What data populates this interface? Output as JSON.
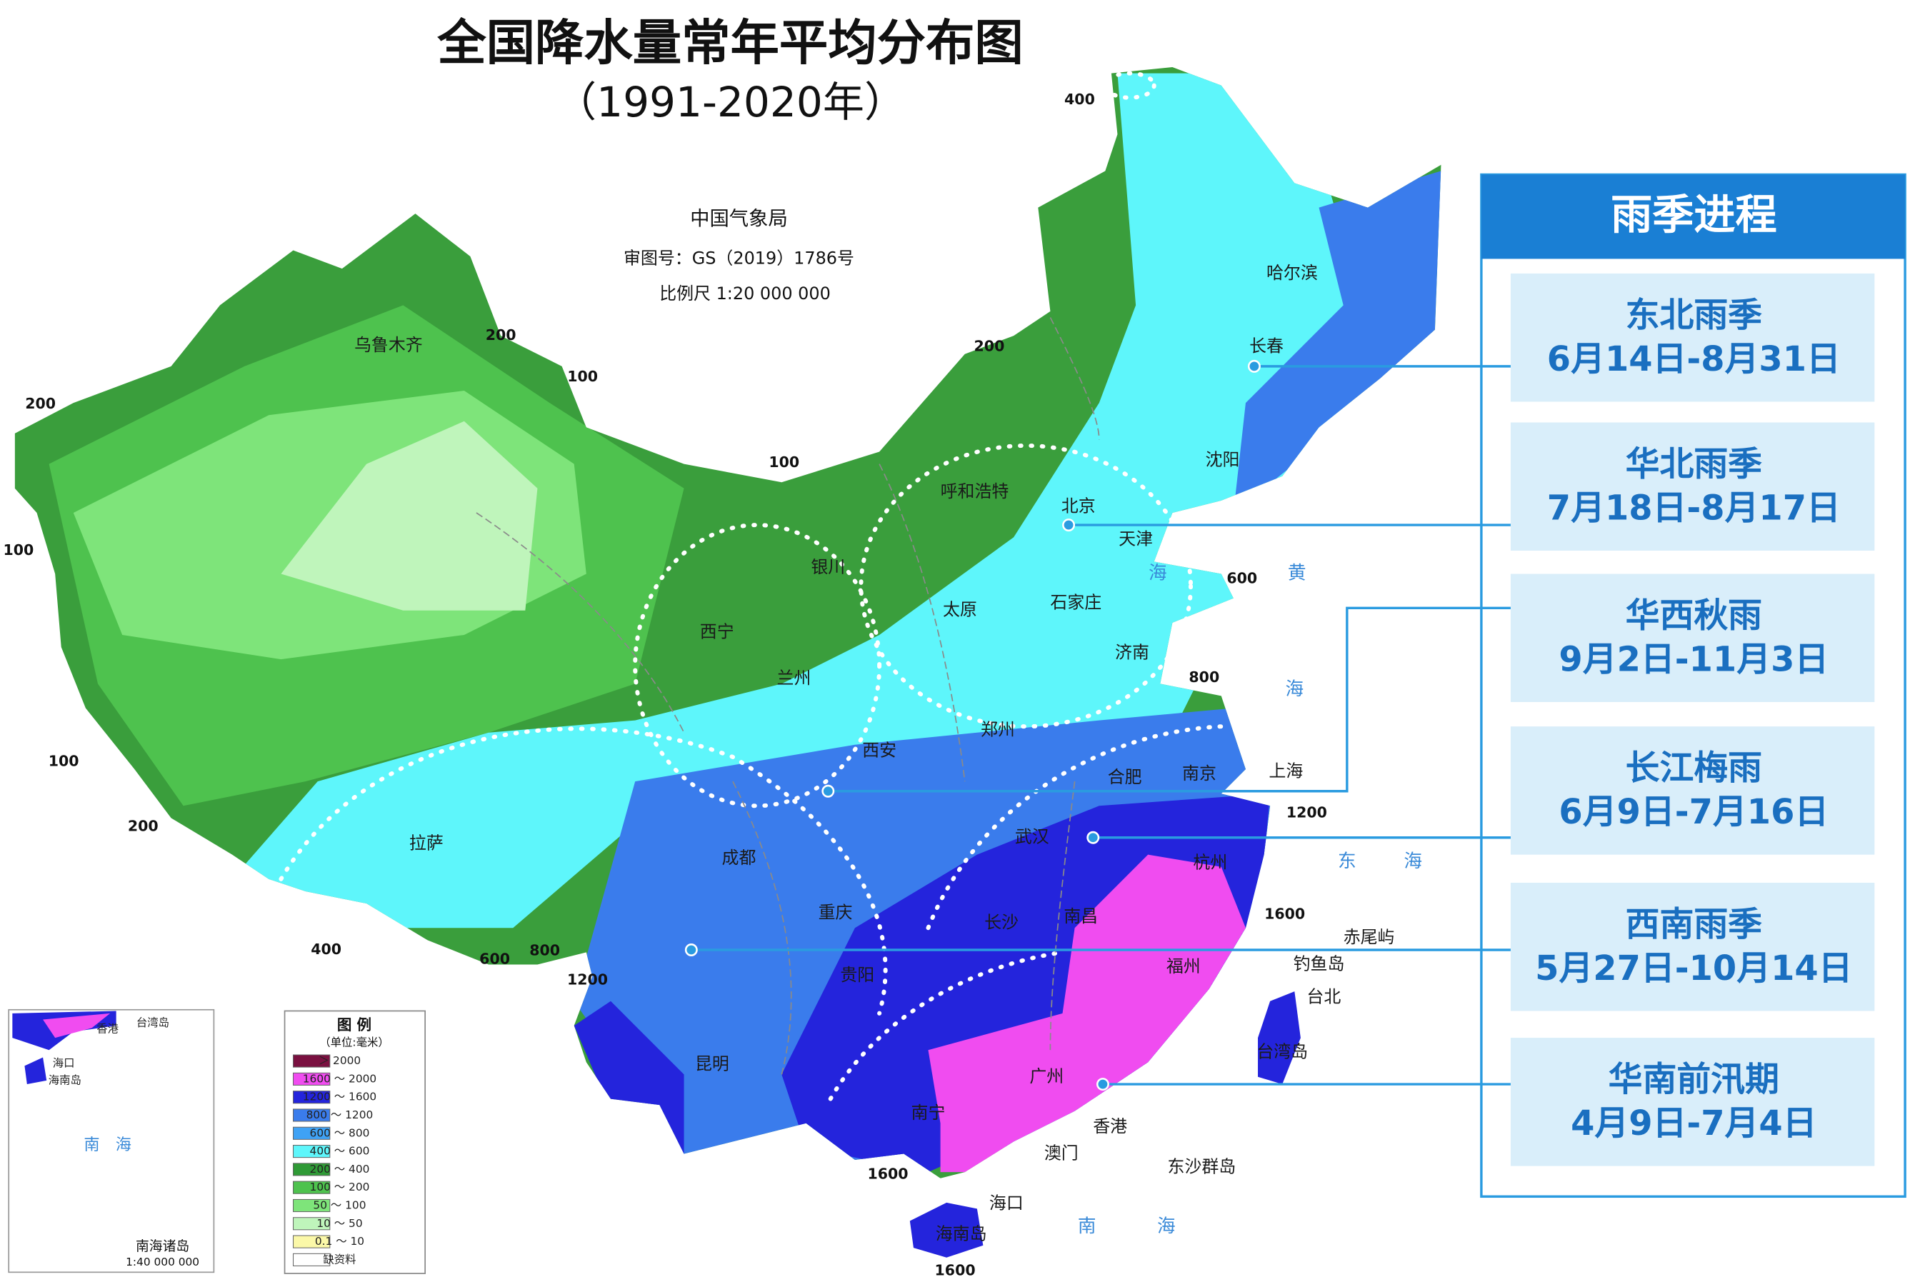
{
  "header": {
    "title": "全国降水量常年平均分布图",
    "subtitle": "（1991-2020年）"
  },
  "map_info": {
    "agency": "中国气象局",
    "approval": "审图号：GS（2019）1786号",
    "scale": "比例尺 1:20 000 000"
  },
  "cities": [
    "乌鲁木齐",
    "哈尔滨",
    "长春",
    "沈阳",
    "呼和浩特",
    "北京",
    "天津",
    "银川",
    "太原",
    "石家庄",
    "西宁",
    "兰州",
    "济南",
    "郑州",
    "西安",
    "合肥",
    "南京",
    "上海",
    "拉萨",
    "成都",
    "武汉",
    "杭州",
    "重庆",
    "长沙",
    "南昌",
    "贵阳",
    "福州",
    "台北",
    "台湾岛",
    "昆明",
    "广州",
    "南宁",
    "香港",
    "澳门",
    "东沙群岛",
    "海口",
    "海南岛",
    "赤尾屿",
    "钓鱼岛"
  ],
  "isolines": [
    400,
    200,
    100,
    200,
    200,
    100,
    100,
    600,
    800,
    100,
    200,
    1200,
    400,
    600,
    800,
    1200,
    1600,
    1600,
    1600
  ],
  "seas": [
    "海",
    "黄",
    "海",
    "东",
    "海",
    "南",
    "海"
  ],
  "inset": {
    "labels": [
      "台湾岛",
      "香港",
      "海口",
      "海南岛",
      "南　海"
    ],
    "title": "南海诸岛",
    "scale": "1:40 000 000"
  },
  "legend": {
    "title": "图 例",
    "unit": "（单位:毫米）",
    "items": [
      {
        "label": "＞ 2000",
        "color": "#7a1040"
      },
      {
        "label": "1600 ～ 2000",
        "color": "#f04cf0"
      },
      {
        "label": "1200 ～ 1600",
        "color": "#2424dc"
      },
      {
        "label": "800 ～ 1200",
        "color": "#3a7cec"
      },
      {
        "label": "600 ～ 800",
        "color": "#3fa2f5"
      },
      {
        "label": "400 ～ 600",
        "color": "#5ef6fb"
      },
      {
        "label": "200 ～ 400",
        "color": "#2f9a36"
      },
      {
        "label": "100 ～ 200",
        "color": "#4ec24e"
      },
      {
        "label": "50 ～ 100",
        "color": "#7ee47a"
      },
      {
        "label": "10 ～ 50",
        "color": "#bff5bb"
      },
      {
        "label": "0.1 ～ 10",
        "color": "#fbf8a8"
      },
      {
        "label": "缺资料",
        "color": "#ffffff"
      }
    ]
  },
  "rainy_season": {
    "title": "雨季进程",
    "items": [
      {
        "name": "东北雨季",
        "period": "6月14日-8月31日"
      },
      {
        "name": "华北雨季",
        "period": "7月18日-8月17日"
      },
      {
        "name": "华西秋雨",
        "period": "9月2日-11月3日"
      },
      {
        "name": "长江梅雨",
        "period": "6月9日-7月16日"
      },
      {
        "name": "西南雨季",
        "period": "5月27日-10月14日"
      },
      {
        "name": "华南前汛期",
        "period": "4月9日-7月4日"
      }
    ]
  }
}
